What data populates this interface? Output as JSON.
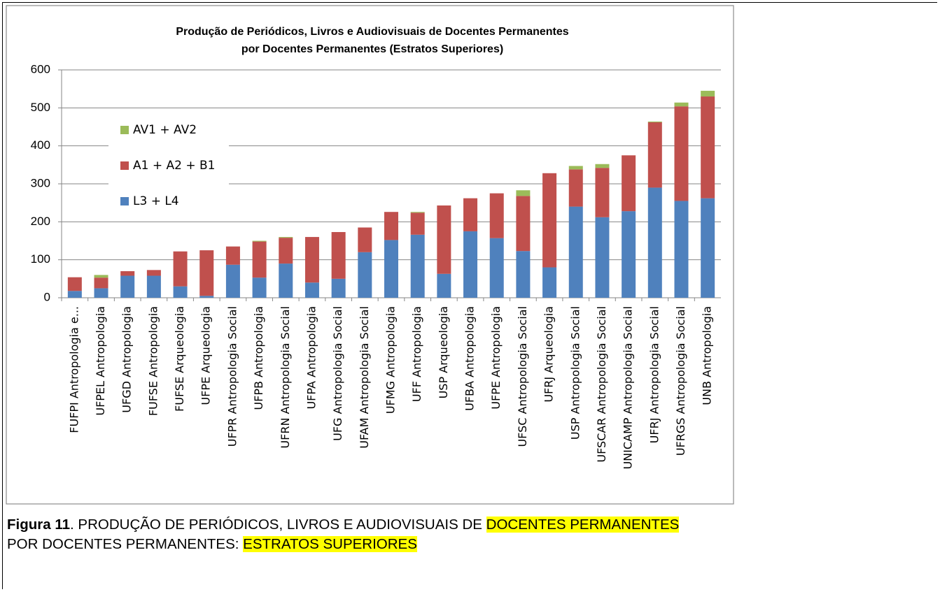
{
  "chart_data": {
    "type": "stacked_bar",
    "title": [
      "Produção de Periódicos, Livros e Audiovisuais de Docentes Permanentes",
      "por Docentes Permanentes (Estratos Superiores)"
    ],
    "categories": [
      "FUFPI Antropologia e...",
      "UFPEL Antropologia",
      "UFGD Antropologia",
      "FUFSE Antropologia",
      "FUFSE Arqueologia",
      "UFPE Arqueologia",
      "UFPR Antropologia Social",
      "UFPB Antropologia",
      "UFRN Antropologia Social",
      "UFPA Antropologia",
      "UFG Antropologia Social",
      "UFAM Antropologia Social",
      "UFMG Antropologia",
      "UFF Antropologia",
      "USP Arqueologia",
      "UFBA Antropologia",
      "UFPE Antropologia",
      "UFSC Antropologia Social",
      "UFRJ Arqueologia",
      "USP Antropologia Social",
      "UFSCAR Antropologia Social",
      "UNICAMP Antropologia Social",
      "UFRJ Antropologia Social",
      "UFRGS Antropologia Social",
      "UNB Antropologia"
    ],
    "series": [
      {
        "name": "L3 + L4",
        "color": "#4f81bd",
        "values": [
          18,
          25,
          58,
          58,
          30,
          5,
          87,
          53,
          90,
          40,
          50,
          120,
          152,
          166,
          63,
          175,
          157,
          123,
          80,
          240,
          212,
          228,
          290,
          255,
          262
        ]
      },
      {
        "name": "A1 + A2 + B1",
        "color": "#c0504d",
        "values": [
          36,
          28,
          12,
          15,
          92,
          120,
          48,
          95,
          68,
          120,
          123,
          65,
          74,
          58,
          180,
          87,
          118,
          145,
          248,
          98,
          130,
          147,
          172,
          249,
          268
        ]
      },
      {
        "name": "AV1 + AV2",
        "color": "#9bbb59",
        "values": [
          0,
          7,
          0,
          0,
          0,
          0,
          0,
          2,
          2,
          0,
          0,
          0,
          0,
          2,
          0,
          0,
          0,
          15,
          0,
          9,
          10,
          0,
          2,
          10,
          15
        ]
      }
    ],
    "ylim": [
      0,
      600
    ],
    "yticks": [
      0,
      100,
      200,
      300,
      400,
      500,
      600
    ],
    "grid": true,
    "legend": "left"
  },
  "caption": {
    "label": "Figura 11",
    "text_1": ". PRODUÇÃO DE PERIÓDICOS, LIVROS E AUDIOVISUAIS  DE ",
    "highlight_1": "DOCENTES PERMANENTES",
    "text_2": "POR DOCENTES PERMANENTES: ",
    "highlight_2": "ESTRATOS SUPERIORES"
  }
}
